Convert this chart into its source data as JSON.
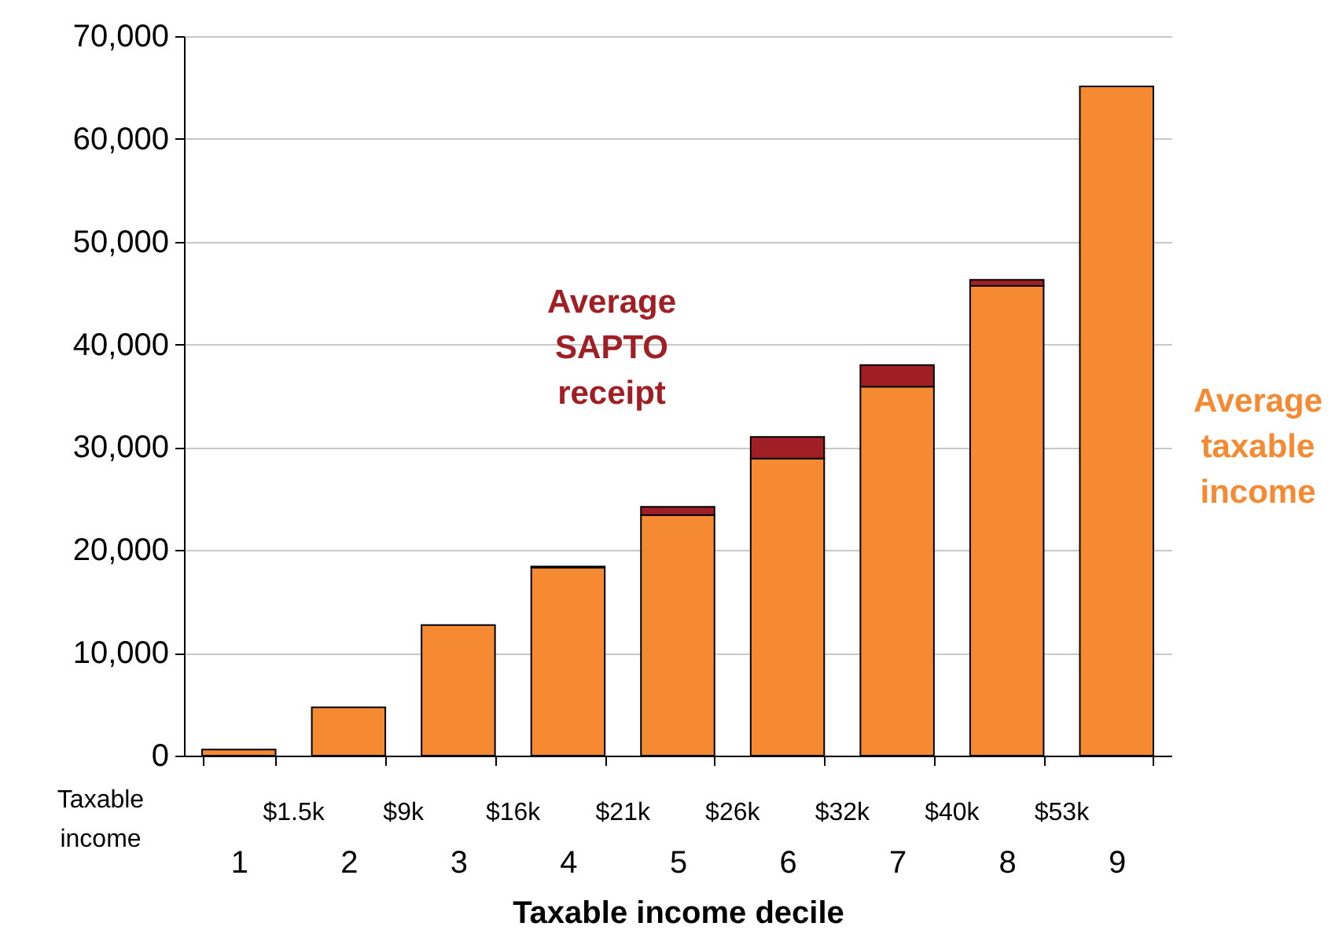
{
  "chart_data": {
    "type": "bar",
    "stacked": true,
    "xlabel": "Taxable income decile",
    "categories": [
      "1",
      "2",
      "3",
      "4",
      "5",
      "6",
      "7",
      "8",
      "9"
    ],
    "series": [
      {
        "name": "Average taxable income",
        "color": "#f58a33",
        "values": [
          600,
          4700,
          12700,
          18300,
          23400,
          28900,
          35900,
          45700,
          65100
        ]
      },
      {
        "name": "Average SAPTO receipt",
        "color": "#a01f24",
        "values": [
          null,
          null,
          null,
          100,
          800,
          2100,
          2100,
          600,
          null
        ]
      }
    ],
    "ylim": [
      0,
      70000
    ],
    "yticks": [
      0,
      {
        "value": 10000,
        "label": "10,000"
      },
      {
        "value": 20000,
        "label": "20,000"
      },
      {
        "value": 30000,
        "label": "30,000"
      },
      {
        "value": 40000,
        "label": "40,000"
      },
      {
        "value": 50000,
        "label": "50,000"
      },
      {
        "value": 60000,
        "label": "60,000"
      },
      {
        "value": 70000,
        "label": "70,000"
      }
    ],
    "grid": "y",
    "legend": false,
    "annotations": [
      "Taxable income",
      "$1.5k",
      "$9k",
      "$16k",
      "$21k",
      "$26k",
      "$32k",
      "$40k",
      "$53k"
    ]
  }
}
